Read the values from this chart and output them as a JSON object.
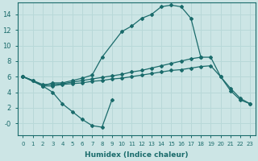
{
  "xlabel": "Humidex (Indice chaleur)",
  "background_color": "#cce5e5",
  "grid_color": "#aacccc",
  "line_color": "#1a6b6b",
  "xlim": [
    -0.5,
    23.5
  ],
  "ylim": [
    -1.5,
    15.5
  ],
  "yticks": [
    0,
    2,
    4,
    6,
    8,
    10,
    12,
    14
  ],
  "ytick_labels": [
    "-0",
    "2",
    "4",
    "6",
    "8",
    "10",
    "12",
    "14"
  ],
  "xticks": [
    0,
    1,
    2,
    3,
    4,
    5,
    6,
    7,
    8,
    9,
    10,
    11,
    12,
    13,
    14,
    15,
    16,
    17,
    18,
    19,
    20,
    21,
    22,
    23
  ],
  "line1_x": [
    0,
    1,
    2,
    3,
    4,
    5,
    6,
    7,
    8,
    10,
    11,
    12,
    13,
    14,
    15,
    16,
    17,
    18
  ],
  "line1_y": [
    6.0,
    5.5,
    4.8,
    5.2,
    5.2,
    5.5,
    5.8,
    6.2,
    8.5,
    11.8,
    12.5,
    13.5,
    14.0,
    15.0,
    15.2,
    15.0,
    13.5,
    8.5
  ],
  "line2_x": [
    0,
    1,
    2,
    3,
    4,
    5,
    6,
    7,
    8,
    9
  ],
  "line2_y": [
    6.0,
    5.5,
    4.8,
    4.0,
    2.5,
    1.5,
    0.5,
    -0.3,
    -0.5,
    3.0
  ],
  "line3_x": [
    0,
    2,
    3,
    4,
    5,
    6,
    7,
    8,
    9,
    10,
    11,
    12,
    13,
    14,
    15,
    16,
    17,
    18,
    19,
    20,
    21,
    22,
    23
  ],
  "line3_y": [
    6.0,
    5.0,
    5.0,
    5.1,
    5.3,
    5.5,
    5.7,
    5.9,
    6.1,
    6.3,
    6.6,
    6.8,
    7.1,
    7.4,
    7.7,
    8.0,
    8.3,
    8.5,
    8.5,
    6.0,
    4.5,
    3.2,
    2.5
  ],
  "line4_x": [
    0,
    2,
    3,
    4,
    5,
    6,
    7,
    8,
    9,
    10,
    11,
    12,
    13,
    14,
    15,
    16,
    17,
    18,
    19,
    20,
    21,
    22,
    23
  ],
  "line4_y": [
    6.0,
    4.8,
    4.8,
    5.0,
    5.1,
    5.2,
    5.4,
    5.5,
    5.7,
    5.8,
    6.0,
    6.2,
    6.4,
    6.6,
    6.8,
    6.9,
    7.1,
    7.3,
    7.4,
    6.0,
    4.2,
    3.0,
    2.5
  ]
}
